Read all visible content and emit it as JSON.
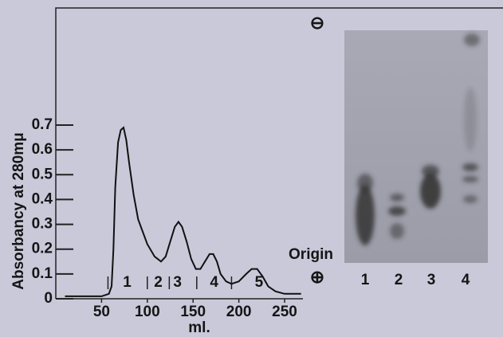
{
  "chart_data": {
    "type": "line",
    "y_label": "Absorbancy at 280mμ",
    "x_label": "ml.",
    "x": [
      10,
      30,
      50,
      58,
      61,
      63,
      65,
      68,
      71,
      74,
      77,
      80,
      85,
      90,
      100,
      108,
      115,
      120,
      125,
      130,
      134,
      138,
      143,
      148,
      153,
      158,
      163,
      168,
      172,
      176,
      180,
      186,
      192,
      200,
      208,
      214,
      220,
      226,
      232,
      240,
      250,
      268
    ],
    "values": [
      0.01,
      0.01,
      0.01,
      0.02,
      0.05,
      0.2,
      0.45,
      0.63,
      0.68,
      0.69,
      0.64,
      0.55,
      0.42,
      0.32,
      0.22,
      0.17,
      0.15,
      0.17,
      0.23,
      0.29,
      0.31,
      0.29,
      0.23,
      0.16,
      0.12,
      0.12,
      0.15,
      0.18,
      0.18,
      0.15,
      0.1,
      0.07,
      0.06,
      0.07,
      0.1,
      0.12,
      0.12,
      0.09,
      0.05,
      0.03,
      0.02,
      0.02
    ],
    "color": "#111111",
    "xlim": [
      0,
      270
    ],
    "xticks": [
      50,
      100,
      150,
      200,
      250
    ],
    "ylim": [
      0,
      0.7
    ],
    "yticks": [
      0,
      0.1,
      0.2,
      0.3,
      0.4,
      0.5,
      0.6,
      0.7
    ],
    "fraction_boundaries": [
      57,
      100,
      124,
      154,
      192
    ],
    "fractions": [
      {
        "label": "1",
        "x": 78
      },
      {
        "label": "2",
        "x": 112
      },
      {
        "label": "3",
        "x": 133
      },
      {
        "label": "4",
        "x": 173
      },
      {
        "label": "5",
        "x": 222
      }
    ]
  },
  "gel": {
    "top_symbol": "⊖",
    "bottom_symbol": "⊕",
    "origin_label": "Origin",
    "lanes": [
      "1",
      "2",
      "3",
      "4"
    ]
  }
}
